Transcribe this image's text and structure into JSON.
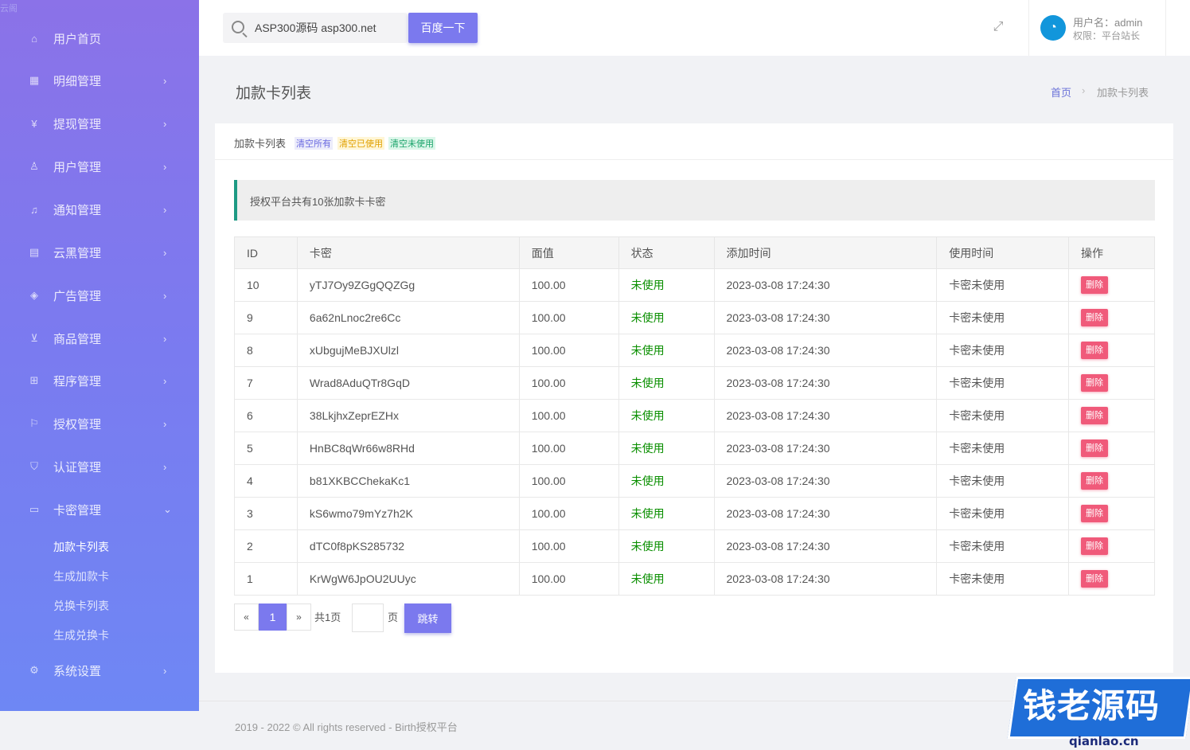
{
  "site_tag": "云阁",
  "sidebar": {
    "items": [
      {
        "label": "用户首页",
        "icon": "home-icon",
        "glyph": "⌂",
        "chevron": ""
      },
      {
        "label": "明细管理",
        "icon": "grid-icon",
        "glyph": "▦",
        "chevron": "›"
      },
      {
        "label": "提现管理",
        "icon": "yen-icon",
        "glyph": "¥",
        "chevron": "›"
      },
      {
        "label": "用户管理",
        "icon": "user-icon",
        "glyph": "♙",
        "chevron": "›"
      },
      {
        "label": "通知管理",
        "icon": "bell-icon",
        "glyph": "♫",
        "chevron": "›"
      },
      {
        "label": "云黑管理",
        "icon": "clipboard-icon",
        "glyph": "▤",
        "chevron": "›"
      },
      {
        "label": "广告管理",
        "icon": "megaphone-icon",
        "glyph": "◈",
        "chevron": "›"
      },
      {
        "label": "商品管理",
        "icon": "cart-icon",
        "glyph": "⊻",
        "chevron": "›"
      },
      {
        "label": "程序管理",
        "icon": "apps-icon",
        "glyph": "⊞",
        "chevron": "›"
      },
      {
        "label": "授权管理",
        "icon": "flag-icon",
        "glyph": "⚐",
        "chevron": "›"
      },
      {
        "label": "认证管理",
        "icon": "shield-icon",
        "glyph": "⛉",
        "chevron": "›"
      },
      {
        "label": "卡密管理",
        "icon": "card-icon",
        "glyph": "▭",
        "chevron": "⌄"
      },
      {
        "label": "系统设置",
        "icon": "gear-icon",
        "glyph": "⚙",
        "chevron": "›"
      }
    ],
    "sub_items": [
      "加款卡列表",
      "生成加款卡",
      "兑换卡列表",
      "生成兑换卡"
    ]
  },
  "header": {
    "search_value": "ASP300源码 asp300.net",
    "search_button": "百度一下",
    "user_name": "用户名：admin",
    "user_role": "权限：平台站长"
  },
  "page": {
    "title": "加款卡列表",
    "breadcrumb_home": "首页",
    "breadcrumb_sep": "›",
    "breadcrumb_current": "加款卡列表"
  },
  "card": {
    "title": "加款卡列表",
    "tags": [
      "清空所有",
      "清空已使用",
      "清空未使用"
    ],
    "alert": "授权平台共有10张加款卡卡密"
  },
  "table": {
    "headers": [
      "ID",
      "卡密",
      "面值",
      "状态",
      "添加时间",
      "使用时间",
      "操作"
    ],
    "delete_label": "删除",
    "rows": [
      [
        "10",
        "yTJ7Oy9ZGgQQZGg",
        "100.00",
        "未使用",
        "2023-03-08 17:24:30",
        "卡密未使用"
      ],
      [
        "9",
        "6a62nLnoc2re6Cc",
        "100.00",
        "未使用",
        "2023-03-08 17:24:30",
        "卡密未使用"
      ],
      [
        "8",
        "xUbgujMeBJXUlzl",
        "100.00",
        "未使用",
        "2023-03-08 17:24:30",
        "卡密未使用"
      ],
      [
        "7",
        "Wrad8AduQTr8GqD",
        "100.00",
        "未使用",
        "2023-03-08 17:24:30",
        "卡密未使用"
      ],
      [
        "6",
        "38LkjhxZeprEZHx",
        "100.00",
        "未使用",
        "2023-03-08 17:24:30",
        "卡密未使用"
      ],
      [
        "5",
        "HnBC8qWr66w8RHd",
        "100.00",
        "未使用",
        "2023-03-08 17:24:30",
        "卡密未使用"
      ],
      [
        "4",
        "b81XKBCChekaKc1",
        "100.00",
        "未使用",
        "2023-03-08 17:24:30",
        "卡密未使用"
      ],
      [
        "3",
        "kS6wmo79mYz7h2K",
        "100.00",
        "未使用",
        "2023-03-08 17:24:30",
        "卡密未使用"
      ],
      [
        "2",
        "dTC0f8pKS285732",
        "100.00",
        "未使用",
        "2023-03-08 17:24:30",
        "卡密未使用"
      ],
      [
        "1",
        "KrWgW6JpOU2UUyc",
        "100.00",
        "未使用",
        "2023-03-08 17:24:30",
        "卡密未使用"
      ]
    ]
  },
  "pagination": {
    "prev": "«",
    "current": "1",
    "next": "»",
    "total": "共1页",
    "page_input_value": "",
    "unit": "页",
    "go": "跳转"
  },
  "footer": "2019 - 2022 © All rights reserved - Birth授权平台",
  "watermark": {
    "text": "钱老源码",
    "url": "qianlao.cn"
  },
  "colors": {
    "accent": "#7b79ee",
    "status_unused": "#0a8f00",
    "delete": "#f05a7a",
    "alert_border": "#1e9a84"
  }
}
